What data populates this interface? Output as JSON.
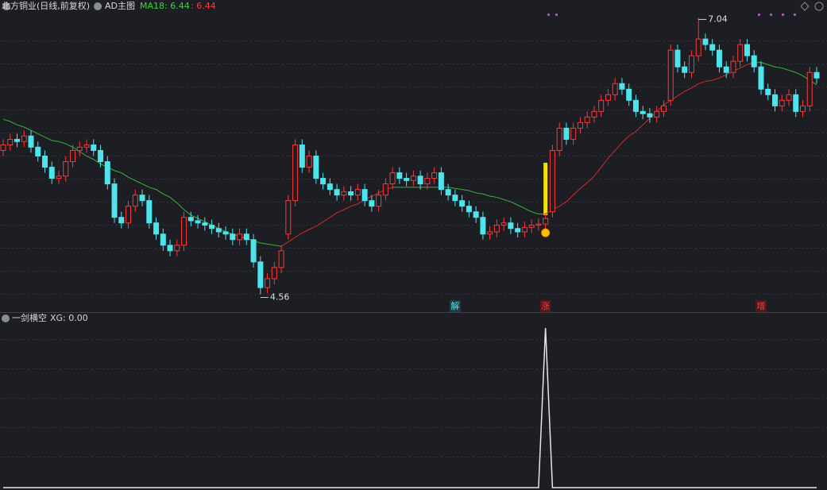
{
  "header": {
    "title": "北方铜业(日线,前复权)",
    "indicator": "AD主图"
  },
  "chart_data": [
    {
      "type": "candlestick",
      "open": [
        5.85,
        5.9,
        5.95,
        5.93,
        5.98,
        5.88,
        5.8,
        5.7,
        5.6,
        5.62,
        5.75,
        5.85,
        5.88,
        5.9,
        5.85,
        5.75,
        5.55,
        5.25,
        5.2,
        5.35,
        5.45,
        5.4,
        5.2,
        5.1,
        5.0,
        4.95,
        5.0,
        5.25,
        5.22,
        5.2,
        5.18,
        5.15,
        5.12,
        5.1,
        5.05,
        5.1,
        5.05,
        4.85,
        4.62,
        4.7,
        4.8,
        5.1,
        5.4,
        5.9,
        5.7,
        5.8,
        5.6,
        5.55,
        5.5,
        5.45,
        5.48,
        5.45,
        5.5,
        5.4,
        5.35,
        5.45,
        5.55,
        5.65,
        5.6,
        5.58,
        5.62,
        5.55,
        5.6,
        5.65,
        5.5,
        5.45,
        5.4,
        5.35,
        5.3,
        5.25,
        5.1,
        5.12,
        5.18,
        5.2,
        5.15,
        5.12,
        5.16,
        5.18,
        5.19,
        5.3,
        5.85,
        6.05,
        5.95,
        6.05,
        6.1,
        6.15,
        6.2,
        6.3,
        6.35,
        6.45,
        6.4,
        6.3,
        6.2,
        6.18,
        6.15,
        6.2,
        6.3,
        6.75,
        6.6,
        6.55,
        6.7,
        6.85,
        6.8,
        6.75,
        6.6,
        6.55,
        6.65,
        6.8,
        6.7,
        6.6,
        6.4,
        6.35,
        6.25,
        6.3,
        6.35,
        6.2,
        6.25,
        6.55
      ],
      "high": [
        5.95,
        6.0,
        6.0,
        6.03,
        6.03,
        5.93,
        5.85,
        5.75,
        5.67,
        5.8,
        5.9,
        5.93,
        5.95,
        5.95,
        5.9,
        5.8,
        5.6,
        5.3,
        5.4,
        5.5,
        5.5,
        5.45,
        5.25,
        5.15,
        5.05,
        5.05,
        5.3,
        5.3,
        5.27,
        5.25,
        5.23,
        5.2,
        5.17,
        5.15,
        5.15,
        5.15,
        5.1,
        4.9,
        4.75,
        4.85,
        5.0,
        5.45,
        5.95,
        5.95,
        5.85,
        5.85,
        5.65,
        5.6,
        5.55,
        5.53,
        5.53,
        5.55,
        5.55,
        5.45,
        5.5,
        5.6,
        5.7,
        5.7,
        5.65,
        5.67,
        5.67,
        5.65,
        5.7,
        5.7,
        5.55,
        5.5,
        5.45,
        5.4,
        5.35,
        5.3,
        5.17,
        5.23,
        5.25,
        5.25,
        5.2,
        5.21,
        5.23,
        5.24,
        5.29,
        5.9,
        6.1,
        6.1,
        6.1,
        6.15,
        6.2,
        6.25,
        6.35,
        6.4,
        6.5,
        6.5,
        6.45,
        6.35,
        6.25,
        6.23,
        6.25,
        6.3,
        6.8,
        6.8,
        6.65,
        6.75,
        7.04,
        6.9,
        6.85,
        6.8,
        6.65,
        6.7,
        6.85,
        6.85,
        6.75,
        6.65,
        6.45,
        6.4,
        6.35,
        6.4,
        6.4,
        6.3,
        6.6,
        6.6
      ],
      "low": [
        5.8,
        5.85,
        5.88,
        5.88,
        5.83,
        5.75,
        5.65,
        5.55,
        5.55,
        5.57,
        5.7,
        5.8,
        5.83,
        5.8,
        5.7,
        5.5,
        5.2,
        5.15,
        5.15,
        5.3,
        5.35,
        5.15,
        5.05,
        4.95,
        4.9,
        4.9,
        4.95,
        5.17,
        5.15,
        5.13,
        5.1,
        5.07,
        5.05,
        5.0,
        5.0,
        5.0,
        4.8,
        4.56,
        4.57,
        4.65,
        4.75,
        5.05,
        5.35,
        5.65,
        5.65,
        5.55,
        5.5,
        5.45,
        5.4,
        5.4,
        5.4,
        5.4,
        5.35,
        5.3,
        5.3,
        5.4,
        5.5,
        5.55,
        5.53,
        5.53,
        5.5,
        5.5,
        5.55,
        5.45,
        5.4,
        5.35,
        5.3,
        5.25,
        5.2,
        5.05,
        5.05,
        5.07,
        5.13,
        5.1,
        5.07,
        5.07,
        5.11,
        5.13,
        5.14,
        5.25,
        5.8,
        5.9,
        5.9,
        6.0,
        6.05,
        6.1,
        6.15,
        6.25,
        6.3,
        6.35,
        6.25,
        6.15,
        6.13,
        6.1,
        6.1,
        6.15,
        6.25,
        6.55,
        6.5,
        6.5,
        6.65,
        6.75,
        6.7,
        6.55,
        6.5,
        6.5,
        6.6,
        6.65,
        6.55,
        6.35,
        6.3,
        6.2,
        6.2,
        6.25,
        6.15,
        6.15,
        6.2,
        6.45
      ],
      "close": [
        5.9,
        5.95,
        5.93,
        5.98,
        5.88,
        5.8,
        5.7,
        5.6,
        5.62,
        5.75,
        5.85,
        5.88,
        5.9,
        5.85,
        5.75,
        5.55,
        5.25,
        5.2,
        5.35,
        5.45,
        5.4,
        5.2,
        5.1,
        5.0,
        4.95,
        5.0,
        5.25,
        5.22,
        5.2,
        5.18,
        5.15,
        5.12,
        5.1,
        5.05,
        5.1,
        5.05,
        4.85,
        4.62,
        4.7,
        4.8,
        4.95,
        5.4,
        5.9,
        5.7,
        5.8,
        5.6,
        5.55,
        5.5,
        5.45,
        5.48,
        5.45,
        5.5,
        5.4,
        5.35,
        5.45,
        5.55,
        5.65,
        5.6,
        5.58,
        5.62,
        5.55,
        5.6,
        5.65,
        5.5,
        5.45,
        5.4,
        5.35,
        5.3,
        5.25,
        5.1,
        5.12,
        5.18,
        5.2,
        5.15,
        5.12,
        5.16,
        5.18,
        5.19,
        5.24,
        5.85,
        6.05,
        5.95,
        6.05,
        6.1,
        6.15,
        6.2,
        6.3,
        6.35,
        6.45,
        6.4,
        6.3,
        6.2,
        6.18,
        6.15,
        6.2,
        6.25,
        6.75,
        6.6,
        6.55,
        6.7,
        6.85,
        6.8,
        6.75,
        6.6,
        6.55,
        6.65,
        6.8,
        6.7,
        6.6,
        6.4,
        6.35,
        6.25,
        6.3,
        6.35,
        6.2,
        6.25,
        6.55,
        6.5
      ],
      "colors": {
        "up": "#ff3636",
        "down": "#4fe3ec"
      },
      "ma": {
        "label": "MA18: 6.44",
        "label2": ": 6.44",
        "label_color": "#3ed23e",
        "label2_color": "#ff3636",
        "colors": {
          "up": "#d12a2a",
          "down": "#39b539"
        },
        "values": [
          6.13,
          6.11,
          6.08,
          6.06,
          6.03,
          6.0,
          5.97,
          5.94,
          5.93,
          5.91,
          5.88,
          5.84,
          5.8,
          5.77,
          5.73,
          5.7,
          5.67,
          5.65,
          5.61,
          5.58,
          5.55,
          5.52,
          5.5,
          5.46,
          5.43,
          5.38,
          5.32,
          5.27,
          5.24,
          5.21,
          5.18,
          5.15,
          5.12,
          5.1,
          5.08,
          5.06,
          5.04,
          5.02,
          5.01,
          5.0,
          4.99,
          5.03,
          5.07,
          5.11,
          5.14,
          5.17,
          5.21,
          5.25,
          5.29,
          5.32,
          5.35,
          5.37,
          5.41,
          5.44,
          5.47,
          5.5,
          5.52,
          5.52,
          5.52,
          5.52,
          5.52,
          5.52,
          5.52,
          5.52,
          5.52,
          5.51,
          5.5,
          5.49,
          5.47,
          5.46,
          5.44,
          5.43,
          5.41,
          5.39,
          5.36,
          5.33,
          5.3,
          5.28,
          5.28,
          5.32,
          5.35,
          5.39,
          5.45,
          5.51,
          5.56,
          5.62,
          5.7,
          5.78,
          5.85,
          5.92,
          5.98,
          6.02,
          6.08,
          6.14,
          6.2,
          6.26,
          6.3,
          6.34,
          6.38,
          6.41,
          6.45,
          6.47,
          6.48,
          6.5,
          6.53,
          6.56,
          6.59,
          6.62,
          6.64,
          6.64,
          6.62,
          6.6,
          6.59,
          6.57,
          6.55,
          6.52,
          6.48,
          6.44
        ]
      },
      "ylim": [
        4.4,
        7.2
      ],
      "annotations": [
        {
          "value": 7.04,
          "index": 100
        },
        {
          "value": 4.56,
          "index": 37
        }
      ],
      "signals": [
        {
          "label": "解",
          "index": 65,
          "color": "#4fe3ec"
        },
        {
          "label": "涨",
          "index": 78,
          "color": "#ff3636"
        },
        {
          "label": "增",
          "index": 109,
          "color": "#ff3636"
        }
      ],
      "signal_bar": {
        "index": 78,
        "values": [
          5.27,
          5.74
        ],
        "color": "#f2e600"
      }
    },
    {
      "type": "line",
      "title": "一剑横空",
      "legend": "XG: 0.00",
      "color": "#e6e6e6",
      "ylim": [
        0,
        1.04
      ],
      "values": [
        0,
        0,
        0,
        0,
        0,
        0,
        0,
        0,
        0,
        0,
        0,
        0,
        0,
        0,
        0,
        0,
        0,
        0,
        0,
        0,
        0,
        0,
        0,
        0,
        0,
        0,
        0,
        0,
        0,
        0,
        0,
        0,
        0,
        0,
        0,
        0,
        0,
        0,
        0,
        0,
        0,
        0,
        0,
        0,
        0,
        0,
        0,
        0,
        0,
        0,
        0,
        0,
        0,
        0,
        0,
        0,
        0,
        0,
        0,
        0,
        0,
        0,
        0,
        0,
        0,
        0,
        0,
        0,
        0,
        0,
        0,
        0,
        0,
        0,
        0,
        0,
        0,
        0,
        1,
        0,
        0,
        0,
        0,
        0,
        0,
        0,
        0,
        0,
        0,
        0,
        0,
        0,
        0,
        0,
        0,
        0,
        0,
        0,
        0,
        0,
        0,
        0,
        0,
        0,
        0,
        0,
        0,
        0,
        0,
        0,
        0,
        0,
        0,
        0,
        0,
        0,
        0,
        0
      ]
    }
  ]
}
